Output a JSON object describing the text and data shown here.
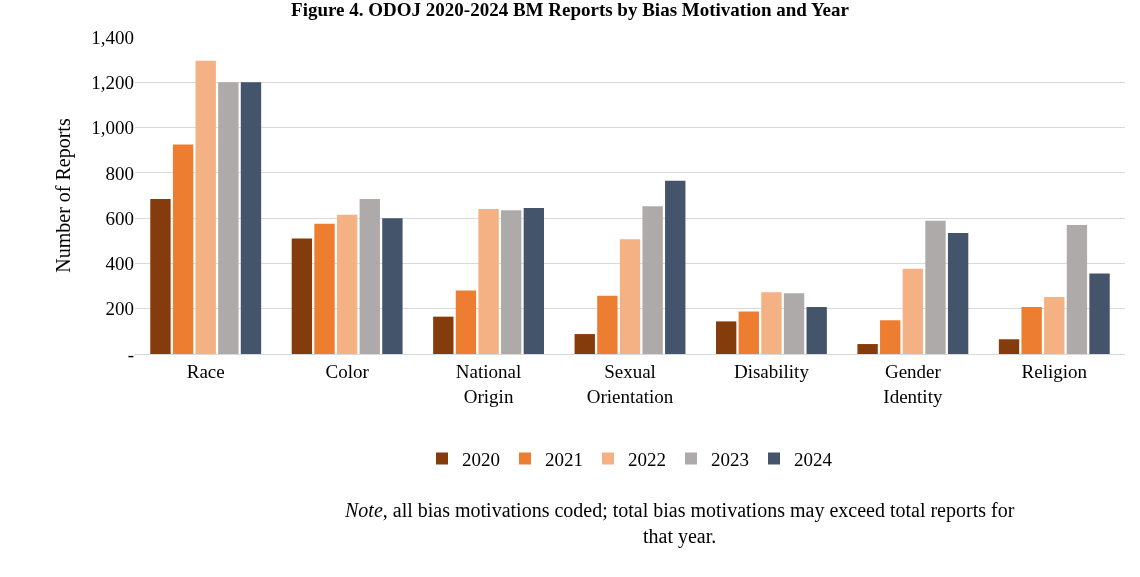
{
  "chart_data": {
    "type": "bar",
    "title": "Figure 4. ODOJ 2020-2024 BM Reports by Bias Motivation and Year",
    "categories": [
      "Race",
      "Color",
      "National Origin",
      "Sexual Orientation",
      "Disability",
      "Gender Identity",
      "Religion"
    ],
    "series": [
      {
        "name": "2020",
        "color": "#843c0c",
        "values": [
          685,
          510,
          165,
          88,
          144,
          44,
          65
        ]
      },
      {
        "name": "2021",
        "color": "#ed7d31",
        "values": [
          925,
          575,
          280,
          257,
          188,
          149,
          208
        ]
      },
      {
        "name": "2022",
        "color": "#f4b183",
        "values": [
          1295,
          615,
          640,
          507,
          273,
          376,
          252
        ]
      },
      {
        "name": "2023",
        "color": "#aeaaaa",
        "values": [
          1200,
          685,
          635,
          652,
          268,
          588,
          570
        ]
      },
      {
        "name": "2024",
        "color": "#44546a",
        "values": [
          1200,
          600,
          645,
          765,
          208,
          534,
          355
        ]
      }
    ],
    "ylabel": "Number of Reports",
    "ylim": [
      0,
      1400
    ],
    "yticks": [
      {
        "value": 0,
        "label": "-"
      },
      200,
      400,
      600,
      800,
      {
        "value": 1000,
        "label": "1,000"
      },
      {
        "value": 1200,
        "label": "1,200"
      },
      {
        "value": 1400,
        "label": "1,400"
      }
    ],
    "grid": "y",
    "legend": "bottom",
    "annotations": [
      "Note, all bias motivations coded; total bias motivations may exceed total reports for that year."
    ]
  }
}
